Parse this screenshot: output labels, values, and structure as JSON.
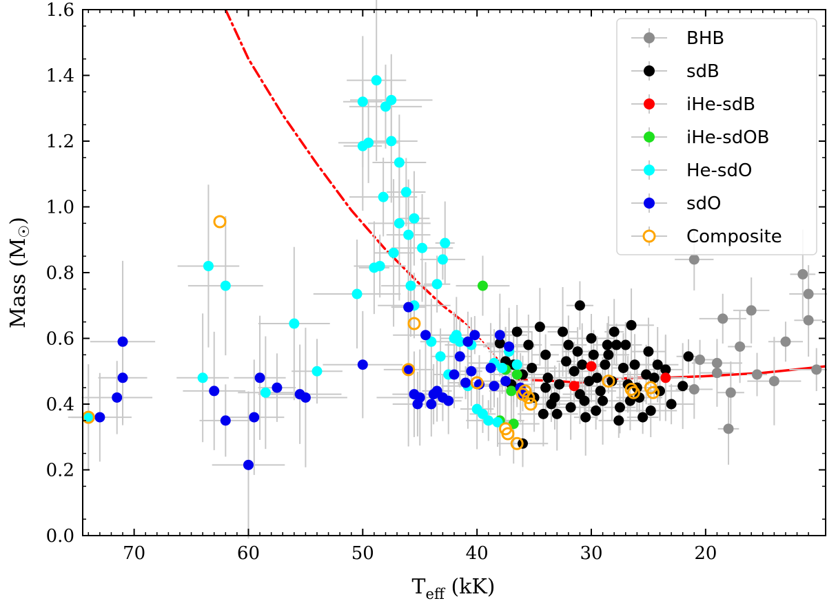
{
  "chart_data": {
    "type": "scatter",
    "title": "",
    "xlabel_main": "T",
    "xlabel_sub": "eff",
    "xlabel_units": " (kK)",
    "ylabel_main": "Mass (M",
    "ylabel_symbol": "☉",
    "ylabel_close": ")",
    "x_axis_inverted": true,
    "xlim": [
      74.5,
      9.5
    ],
    "ylim": [
      0.0,
      1.6
    ],
    "xticks": [
      70,
      60,
      50,
      40,
      30,
      20
    ],
    "yticks": [
      "0.0",
      "0.2",
      "0.4",
      "0.6",
      "0.8",
      "1.0",
      "1.2",
      "1.4",
      "1.6"
    ],
    "legend_position": "top-right",
    "colors": {
      "BHB": "#8c8c8c",
      "sdB": "#000000",
      "iHe-sdB": "#ff0000",
      "iHe-sdOB": "#1ee01e",
      "He-sdO": "#00ffff",
      "sdO": "#0000ee",
      "Composite": "#ffa500",
      "errorbar": "#c8c8c8",
      "curve": "#ff0000"
    },
    "legend": [
      {
        "name": "BHB",
        "marker": "filled"
      },
      {
        "name": "sdB",
        "marker": "filled"
      },
      {
        "name": "iHe-sdB",
        "marker": "filled"
      },
      {
        "name": "iHe-sdOB",
        "marker": "filled"
      },
      {
        "name": "He-sdO",
        "marker": "filled"
      },
      {
        "name": "sdO",
        "marker": "filled"
      },
      {
        "name": "Composite",
        "marker": "open"
      }
    ],
    "curves": [
      {
        "name": "track-dashdot",
        "style": "dashdot",
        "points": [
          [
            62.0,
            1.6
          ],
          [
            60.0,
            1.45
          ],
          [
            57.0,
            1.28
          ],
          [
            54.0,
            1.13
          ],
          [
            51.0,
            0.99
          ],
          [
            48.0,
            0.87
          ],
          [
            45.0,
            0.765
          ],
          [
            43.0,
            0.7
          ],
          [
            41.0,
            0.645
          ]
        ]
      },
      {
        "name": "track-dotted",
        "style": "dotted",
        "points": [
          [
            41.0,
            0.645
          ],
          [
            39.5,
            0.59
          ],
          [
            38.0,
            0.53
          ],
          [
            36.5,
            0.48
          ]
        ]
      },
      {
        "name": "track-dashed",
        "style": "dashed",
        "points": [
          [
            36.5,
            0.475
          ],
          [
            33.0,
            0.47
          ],
          [
            31.0,
            0.465
          ],
          [
            29.0,
            0.475
          ],
          [
            26.0,
            0.48
          ],
          [
            23.5,
            0.48
          ]
        ]
      },
      {
        "name": "track-solid",
        "style": "solid",
        "points": [
          [
            23.5,
            0.48
          ],
          [
            20.0,
            0.485
          ],
          [
            15.0,
            0.495
          ],
          [
            9.5,
            0.515
          ]
        ]
      }
    ],
    "series": [
      {
        "name": "BHB",
        "points": [
          [
            21.0,
            0.84
          ],
          [
            20.5,
            0.535
          ],
          [
            21.0,
            0.445
          ],
          [
            19.0,
            0.525
          ],
          [
            19.0,
            0.495
          ],
          [
            18.5,
            0.66
          ],
          [
            18.0,
            0.325
          ],
          [
            17.8,
            0.435
          ],
          [
            17.0,
            0.575
          ],
          [
            16.0,
            0.685
          ],
          [
            15.5,
            0.49
          ],
          [
            14.0,
            0.47
          ],
          [
            13.0,
            0.59
          ],
          [
            11.5,
            0.795
          ],
          [
            11.0,
            0.735
          ],
          [
            11.0,
            0.655
          ],
          [
            10.3,
            0.505
          ]
        ]
      },
      {
        "name": "sdB",
        "points": [
          [
            38.0,
            0.585
          ],
          [
            37.5,
            0.53
          ],
          [
            37.0,
            0.46
          ],
          [
            36.5,
            0.62
          ],
          [
            36.0,
            0.49
          ],
          [
            36.0,
            0.28
          ],
          [
            35.5,
            0.58
          ],
          [
            35.0,
            0.42
          ],
          [
            34.5,
            0.635
          ],
          [
            34.0,
            0.55
          ],
          [
            34.0,
            0.45
          ],
          [
            33.5,
            0.4
          ],
          [
            33.0,
            0.37
          ],
          [
            32.5,
            0.62
          ],
          [
            32.0,
            0.58
          ],
          [
            31.5,
            0.5
          ],
          [
            31.0,
            0.43
          ],
          [
            31.0,
            0.7
          ],
          [
            30.5,
            0.36
          ],
          [
            30.0,
            0.6
          ],
          [
            29.5,
            0.48
          ],
          [
            29.0,
            0.41
          ],
          [
            28.5,
            0.55
          ],
          [
            28.0,
            0.62
          ],
          [
            27.5,
            0.39
          ],
          [
            27.0,
            0.58
          ],
          [
            26.5,
            0.64
          ],
          [
            26.0,
            0.45
          ],
          [
            25.5,
            0.36
          ],
          [
            25.0,
            0.56
          ],
          [
            24.5,
            0.48
          ],
          [
            24.0,
            0.44
          ],
          [
            23.5,
            0.505
          ],
          [
            23.0,
            0.4
          ],
          [
            22.0,
            0.455
          ],
          [
            21.5,
            0.545
          ],
          [
            36.8,
            0.52
          ],
          [
            35.2,
            0.51
          ],
          [
            33.8,
            0.48
          ],
          [
            32.8,
            0.46
          ],
          [
            32.2,
            0.53
          ],
          [
            31.8,
            0.39
          ],
          [
            30.8,
            0.52
          ],
          [
            30.2,
            0.47
          ],
          [
            29.8,
            0.55
          ],
          [
            29.2,
            0.44
          ],
          [
            28.8,
            0.52
          ],
          [
            28.2,
            0.47
          ],
          [
            27.8,
            0.58
          ],
          [
            27.2,
            0.51
          ],
          [
            26.8,
            0.46
          ],
          [
            26.2,
            0.52
          ],
          [
            25.8,
            0.42
          ],
          [
            25.2,
            0.49
          ],
          [
            24.8,
            0.38
          ],
          [
            24.2,
            0.52
          ],
          [
            31.2,
            0.56
          ],
          [
            30.6,
            0.41
          ],
          [
            29.6,
            0.38
          ],
          [
            28.6,
            0.58
          ],
          [
            27.6,
            0.35
          ],
          [
            26.6,
            0.41
          ],
          [
            34.2,
            0.37
          ],
          [
            33.2,
            0.42
          ]
        ]
      },
      {
        "name": "iHe-sdB",
        "points": [
          [
            31.5,
            0.455
          ],
          [
            30.0,
            0.515
          ],
          [
            23.5,
            0.48
          ]
        ]
      },
      {
        "name": "iHe-sdOB",
        "points": [
          [
            39.5,
            0.76
          ],
          [
            37.5,
            0.505
          ],
          [
            37.0,
            0.44
          ],
          [
            36.8,
            0.34
          ],
          [
            36.5,
            0.49
          ],
          [
            38.0,
            0.35
          ]
        ]
      },
      {
        "name": "He-sdO",
        "points": [
          [
            74.0,
            0.36
          ],
          [
            63.5,
            0.82
          ],
          [
            64.0,
            0.48
          ],
          [
            62.0,
            0.76
          ],
          [
            58.5,
            0.435
          ],
          [
            56.0,
            0.645
          ],
          [
            54.0,
            0.5
          ],
          [
            50.5,
            0.735
          ],
          [
            50.0,
            1.185
          ],
          [
            50.0,
            1.32
          ],
          [
            49.5,
            1.195
          ],
          [
            49.0,
            0.815
          ],
          [
            48.8,
            1.385
          ],
          [
            48.5,
            0.82
          ],
          [
            48.2,
            1.03
          ],
          [
            48.0,
            1.305
          ],
          [
            47.5,
            1.325
          ],
          [
            47.5,
            1.2
          ],
          [
            47.3,
            0.86
          ],
          [
            46.8,
            1.135
          ],
          [
            46.8,
            0.95
          ],
          [
            46.2,
            1.045
          ],
          [
            46.0,
            0.915
          ],
          [
            45.8,
            0.76
          ],
          [
            45.5,
            0.965
          ],
          [
            45.5,
            0.7
          ],
          [
            44.8,
            0.875
          ],
          [
            44.0,
            0.59
          ],
          [
            43.5,
            0.765
          ],
          [
            43.2,
            0.545
          ],
          [
            43.0,
            0.84
          ],
          [
            42.8,
            0.89
          ],
          [
            42.5,
            0.49
          ],
          [
            42.0,
            0.6
          ],
          [
            41.8,
            0.61
          ],
          [
            41.5,
            0.59
          ],
          [
            40.8,
            0.455
          ],
          [
            40.5,
            0.58
          ],
          [
            40.0,
            0.385
          ],
          [
            39.5,
            0.37
          ],
          [
            39.0,
            0.35
          ],
          [
            38.5,
            0.525
          ],
          [
            38.2,
            0.345
          ],
          [
            37.8,
            0.51
          ],
          [
            37.2,
            0.56
          ],
          [
            36.5,
            0.52
          ]
        ]
      },
      {
        "name": "sdO",
        "points": [
          [
            73.0,
            0.36
          ],
          [
            71.5,
            0.42
          ],
          [
            71.0,
            0.59
          ],
          [
            71.0,
            0.48
          ],
          [
            63.0,
            0.44
          ],
          [
            62.0,
            0.35
          ],
          [
            60.0,
            0.215
          ],
          [
            59.5,
            0.36
          ],
          [
            59.0,
            0.48
          ],
          [
            57.5,
            0.45
          ],
          [
            55.5,
            0.43
          ],
          [
            55.0,
            0.42
          ],
          [
            50.0,
            0.52
          ],
          [
            46.0,
            0.695
          ],
          [
            46.0,
            0.505
          ],
          [
            45.5,
            0.43
          ],
          [
            45.2,
            0.4
          ],
          [
            45.0,
            0.42
          ],
          [
            44.5,
            0.61
          ],
          [
            44.0,
            0.4
          ],
          [
            43.8,
            0.43
          ],
          [
            43.5,
            0.44
          ],
          [
            43.0,
            0.42
          ],
          [
            42.5,
            0.41
          ],
          [
            42.0,
            0.49
          ],
          [
            41.5,
            0.545
          ],
          [
            41.0,
            0.465
          ],
          [
            40.8,
            0.59
          ],
          [
            40.5,
            0.5
          ],
          [
            40.2,
            0.61
          ],
          [
            39.8,
            0.46
          ],
          [
            38.8,
            0.51
          ],
          [
            38.5,
            0.455
          ],
          [
            38.0,
            0.61
          ],
          [
            37.5,
            0.47
          ],
          [
            37.2,
            0.575
          ],
          [
            36.0,
            0.43
          ],
          [
            36.2,
            0.45
          ]
        ]
      },
      {
        "name": "Composite",
        "points": [
          [
            74.0,
            0.36
          ],
          [
            62.5,
            0.955
          ],
          [
            45.5,
            0.645
          ],
          [
            46.0,
            0.505
          ],
          [
            40.0,
            0.465
          ],
          [
            37.5,
            0.325
          ],
          [
            37.3,
            0.31
          ],
          [
            36.5,
            0.28
          ],
          [
            36.0,
            0.43
          ],
          [
            35.8,
            0.44
          ],
          [
            35.5,
            0.42
          ],
          [
            35.3,
            0.4
          ],
          [
            28.5,
            0.47
          ],
          [
            26.5,
            0.445
          ],
          [
            26.3,
            0.435
          ],
          [
            24.8,
            0.45
          ],
          [
            24.6,
            0.435
          ]
        ]
      }
    ]
  }
}
